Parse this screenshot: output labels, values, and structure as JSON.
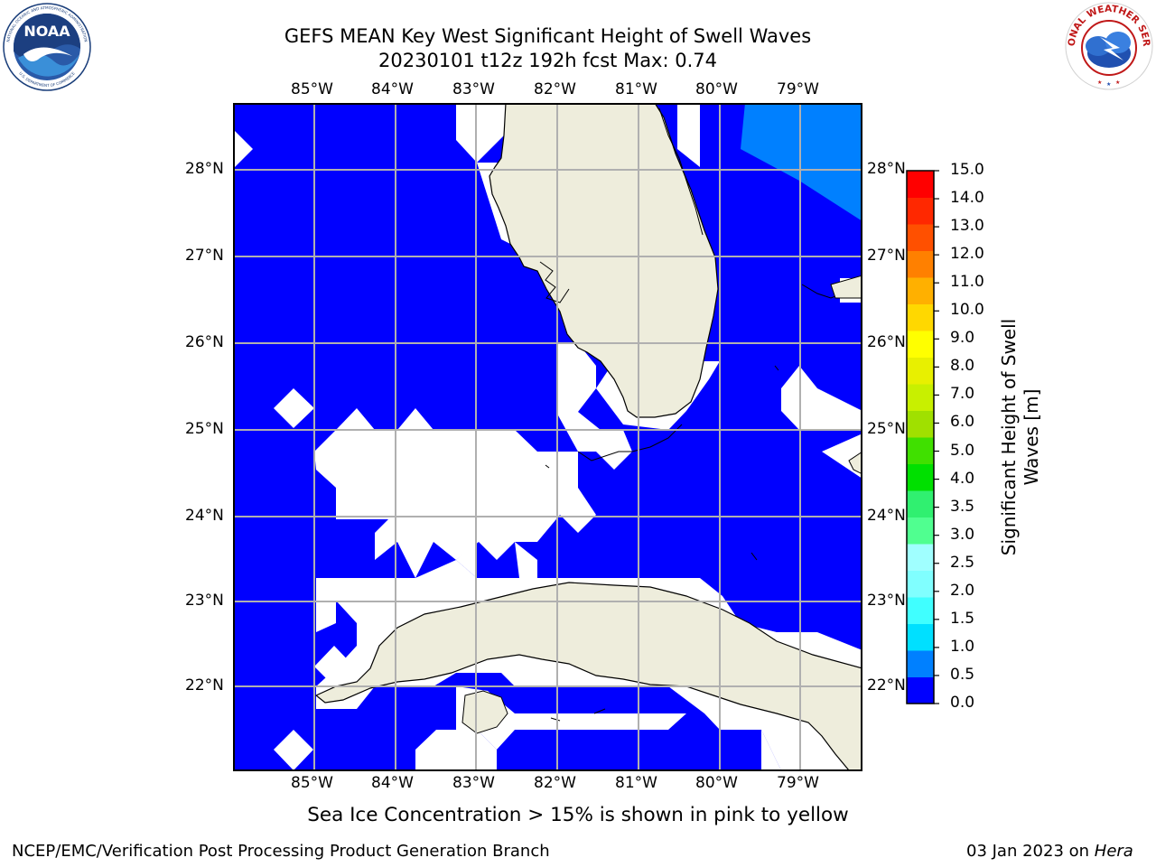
{
  "title": {
    "line1": "GEFS MEAN Key West Significant Height of Swell Waves",
    "line2": "20230101 t12z 192h fcst   Max: 0.74"
  },
  "map": {
    "lon_labels": [
      "85°W",
      "84°W",
      "83°W",
      "82°W",
      "81°W",
      "80°W",
      "79°W"
    ],
    "lat_labels": [
      "28°N",
      "27°N",
      "26°N",
      "25°N",
      "24°N",
      "23°N",
      "22°N"
    ],
    "colors": {
      "ocean_fill": "#0000ff",
      "lighter_fill": "#0080ff",
      "land": "#eeeddc",
      "grid": "#b0b0b0"
    }
  },
  "colorbar": {
    "label": "Significant Height of Swell Waves [m]",
    "label_line1": "Significant Height of Swell",
    "label_line2": "Waves [m]",
    "tick_labels": [
      "0.0",
      "0.5",
      "1.0",
      "1.5",
      "2.0",
      "2.5",
      "3.0",
      "3.5",
      "4.0",
      "5.0",
      "6.0",
      "7.0",
      "8.0",
      "9.0",
      "10.0",
      "11.0",
      "12.0",
      "13.0",
      "14.0",
      "15.0"
    ],
    "colors": [
      "#0000ff",
      "#0080ff",
      "#00e0ff",
      "#40ffff",
      "#80ffff",
      "#a0ffff",
      "#50ff90",
      "#30f070",
      "#00e000",
      "#40e000",
      "#a0e000",
      "#c8f000",
      "#e8f000",
      "#ffff00",
      "#ffd800",
      "#ffb000",
      "#ff8000",
      "#ff5000",
      "#ff2800",
      "#ff0000"
    ]
  },
  "subnote": "Sea Ice Concentration > 15% is shown in pink to yellow",
  "footer": {
    "left": "NCEP/EMC/Verification Post Processing Product Generation Branch",
    "right_date": "03 Jan 2023 on ",
    "right_system": "Hera"
  },
  "logos": {
    "noaa": "NOAA",
    "nws": "NATIONAL WEATHER SERVICE",
    "noaa_ring": "NATIONAL OCEANIC AND ATMOSPHERIC ADMINISTRATION",
    "noaa_ring2": "U.S. DEPARTMENT OF COMMERCE"
  }
}
